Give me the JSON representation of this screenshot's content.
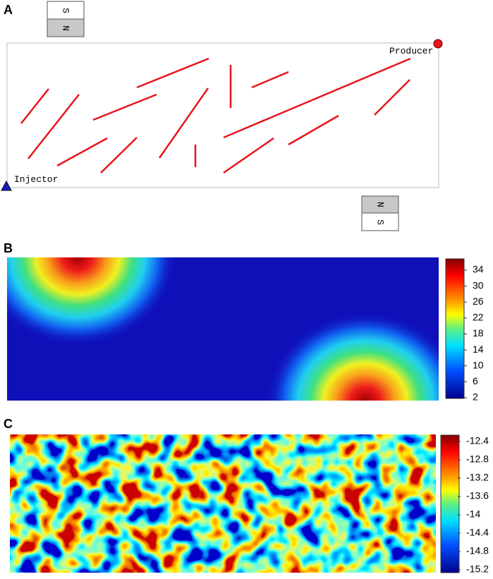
{
  "panels": {
    "a": {
      "label": "A",
      "magnet_top": [
        "S",
        "N"
      ],
      "magnet_bottom": [
        "N",
        "S"
      ],
      "producer": "Producer",
      "injector": "Injector"
    },
    "b": {
      "label": "B",
      "colorbar_ticks": [
        "34",
        "30",
        "26",
        "22",
        "18",
        "14",
        "10",
        "6",
        "2"
      ]
    },
    "c": {
      "label": "C",
      "colorbar_ticks": [
        "-12.4",
        "-12.8",
        "-13.2",
        "-13.6",
        "-14",
        "-14.4",
        "-14.8",
        "-15.2"
      ]
    }
  }
}
